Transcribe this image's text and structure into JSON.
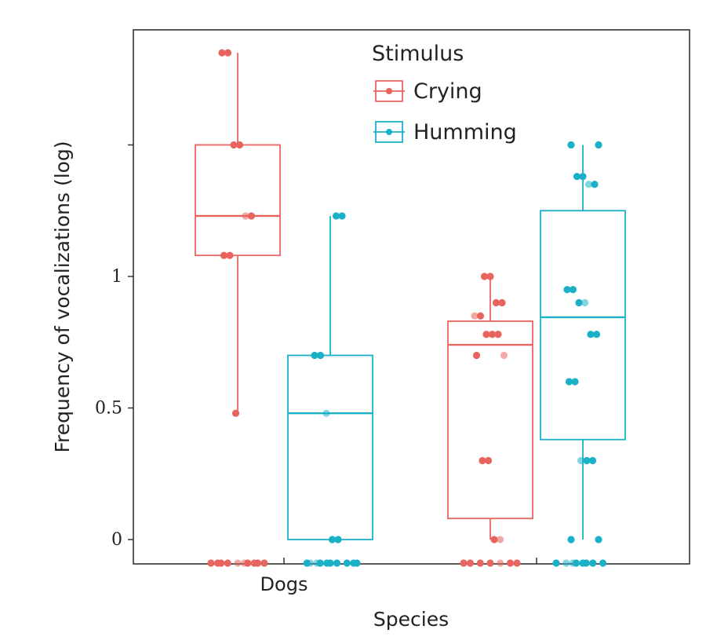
{
  "chart_data": {
    "type": "box",
    "xlabel": "Species",
    "ylabel": "Frequency of vocalizations (log)",
    "y_ticks": [
      {
        "value": 0,
        "label": "0"
      },
      {
        "value": 0.5,
        "label": "0.5"
      },
      {
        "value": 1,
        "label": "1"
      },
      {
        "value": 1.5,
        "label": ""
      }
    ],
    "ylim": [
      -0.09,
      1.94
    ],
    "categories": [
      "Dogs",
      ""
    ],
    "legend": {
      "title": "Stimulus",
      "position": "top-center",
      "entries": [
        "Crying",
        "Humming"
      ]
    },
    "grid": false,
    "series": [
      {
        "name": "Crying",
        "color": "#e8645f",
        "boxes": [
          {
            "category": "Dogs",
            "min": 0.48,
            "q1": 1.08,
            "median": 1.23,
            "q3": 1.5,
            "max": 1.85
          },
          {
            "category": "",
            "min": 0.0,
            "q1": 0.08,
            "median": 0.74,
            "q3": 0.83,
            "max": 1.0
          }
        ],
        "points": [
          {
            "category": "Dogs",
            "values": [
              1.85,
              1.85,
              1.5,
              1.5,
              1.23,
              1.23,
              1.08,
              1.08,
              0.48,
              -0.09,
              -0.09,
              -0.09,
              -0.09,
              -0.09,
              -0.09,
              -0.09,
              -0.09,
              -0.09,
              -0.09
            ]
          },
          {
            "category": "",
            "values": [
              1.0,
              1.0,
              0.9,
              0.9,
              0.85,
              0.85,
              0.78,
              0.78,
              0.78,
              0.7,
              0.7,
              0.3,
              0.3,
              0.0,
              0.0,
              -0.09,
              -0.09,
              -0.09,
              -0.09,
              -0.09,
              -0.09,
              -0.09
            ]
          }
        ]
      },
      {
        "name": "Humming",
        "color": "#1ab1c8",
        "boxes": [
          {
            "category": "Dogs",
            "min": 0.0,
            "q1": 0.0,
            "median": 0.48,
            "q3": 0.7,
            "max": 1.23
          },
          {
            "category": "",
            "min": 0.0,
            "q1": 0.38,
            "median": 0.845,
            "q3": 1.25,
            "max": 1.5
          }
        ],
        "points": [
          {
            "category": "Dogs",
            "values": [
              1.23,
              1.23,
              0.7,
              0.7,
              0.48,
              0.0,
              0.0,
              -0.09,
              -0.09,
              -0.09,
              -0.09,
              -0.09,
              -0.09,
              -0.09,
              -0.09,
              -0.09,
              -0.09
            ]
          },
          {
            "category": "",
            "values": [
              1.5,
              1.5,
              1.38,
              1.38,
              1.35,
              1.35,
              0.95,
              0.95,
              0.9,
              0.9,
              0.78,
              0.78,
              0.6,
              0.6,
              0.3,
              0.3,
              0.3,
              0.0,
              0.0,
              -0.09,
              -0.09,
              -0.09,
              -0.09,
              -0.09,
              -0.09,
              -0.09,
              -0.09
            ]
          }
        ]
      }
    ]
  }
}
